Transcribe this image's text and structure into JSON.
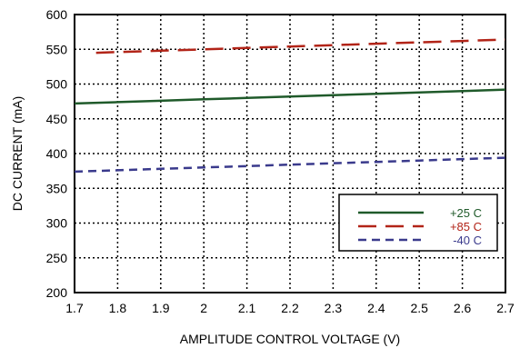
{
  "chart_data": {
    "type": "line",
    "title": "",
    "xlabel": "AMPLITUDE CONTROL VOLTAGE (V)",
    "ylabel": "DC CURRENT (mA)",
    "xlim": [
      1.7,
      2.7
    ],
    "ylim": [
      200,
      600
    ],
    "xticks": [
      "1.7",
      "1.8",
      "1.9",
      "2",
      "2.1",
      "2.2",
      "2.3",
      "2.4",
      "2.5",
      "2.6",
      "2.7"
    ],
    "yticks": [
      "200",
      "250",
      "300",
      "350",
      "400",
      "450",
      "500",
      "550",
      "600"
    ],
    "grid": true,
    "legend_position": "bottom-right",
    "series": [
      {
        "name": "+25 C",
        "color": "#1f5a2a",
        "style": "solid",
        "x": [
          1.7,
          1.8,
          1.9,
          2.0,
          2.1,
          2.2,
          2.3,
          2.4,
          2.5,
          2.6,
          2.7
        ],
        "y": [
          472,
          474,
          476,
          478,
          480,
          482,
          484,
          486,
          488,
          490,
          492
        ]
      },
      {
        "name": "+85 C",
        "color": "#b22418",
        "style": "long-dash",
        "x": [
          1.75,
          1.8,
          1.9,
          2.0,
          2.1,
          2.2,
          2.3,
          2.4,
          2.5,
          2.6,
          2.7
        ],
        "y": [
          545,
          546,
          548,
          550,
          552,
          554,
          556,
          558,
          560,
          562,
          564
        ]
      },
      {
        "name": "-40 C",
        "color": "#3a3a8c",
        "style": "short-dash",
        "x": [
          1.7,
          1.8,
          1.9,
          2.0,
          2.1,
          2.2,
          2.3,
          2.4,
          2.5,
          2.6,
          2.7
        ],
        "y": [
          374,
          376,
          378,
          380,
          382,
          384,
          386,
          388,
          390,
          392,
          394
        ]
      }
    ]
  }
}
